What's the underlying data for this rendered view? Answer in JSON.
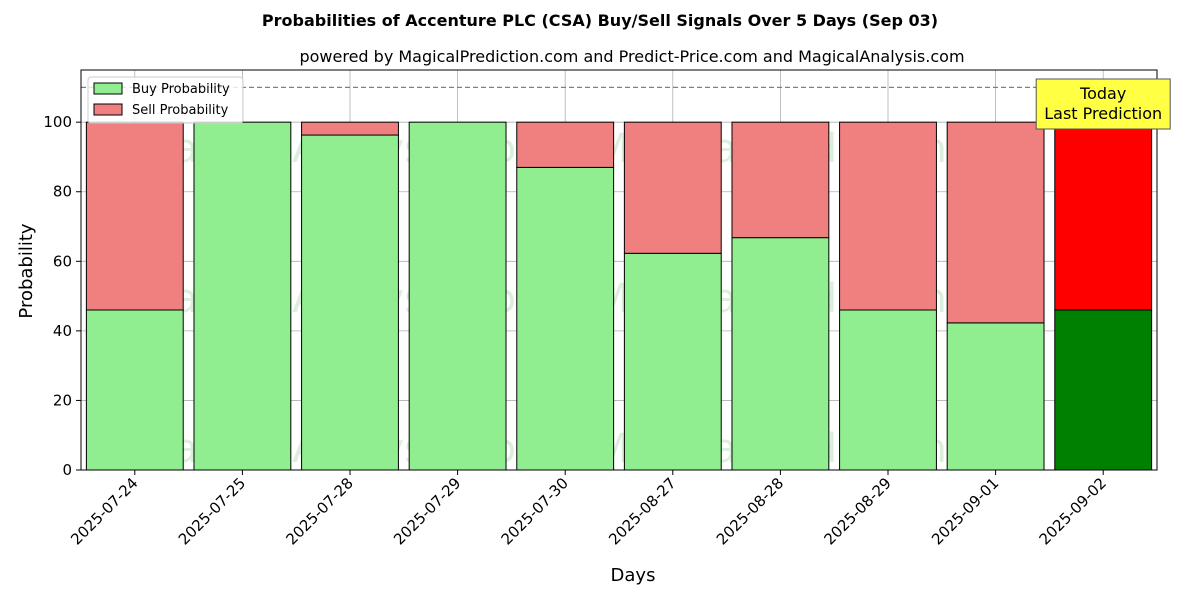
{
  "chart_data": {
    "type": "bar",
    "stacked": true,
    "title": "Probabilities of Accenture PLC (CSA) Buy/Sell Signals Over 5 Days (Sep 03)",
    "subtitle": "powered by MagicalPrediction.com and Predict-Price.com and MagicalAnalysis.com",
    "xlabel": "Days",
    "ylabel": "Probability",
    "ylim": [
      0,
      115
    ],
    "yticks": [
      0,
      20,
      40,
      60,
      80,
      100
    ],
    "grid": true,
    "reference_line": 110,
    "categories": [
      "2025-07-24",
      "2025-07-25",
      "2025-07-28",
      "2025-07-29",
      "2025-07-30",
      "2025-08-27",
      "2025-08-28",
      "2025-08-29",
      "2025-09-01",
      "2025-09-02"
    ],
    "series": [
      {
        "name": "Buy Probability",
        "color": "#90ee90",
        "values": [
          46,
          100,
          96.3,
          100,
          87,
          62.3,
          66.8,
          46,
          42.3,
          46
        ]
      },
      {
        "name": "Sell Probability",
        "color": "#f08080",
        "values": [
          54,
          0,
          3.7,
          0,
          13,
          37.7,
          33.2,
          54,
          57.7,
          54
        ]
      }
    ],
    "highlight": {
      "index": 9,
      "buy_color": "#008000",
      "sell_color": "#ff0000"
    },
    "legend": {
      "position": "top-left",
      "entries": [
        "Buy Probability",
        "Sell Probability"
      ]
    },
    "annotation": {
      "lines": [
        "Today",
        "Last Prediction"
      ],
      "bg": "#ffff44",
      "target": "2025-09-02"
    },
    "watermarks": [
      "MagicalAnalysis.com",
      "MagicalPrediction.com"
    ]
  }
}
